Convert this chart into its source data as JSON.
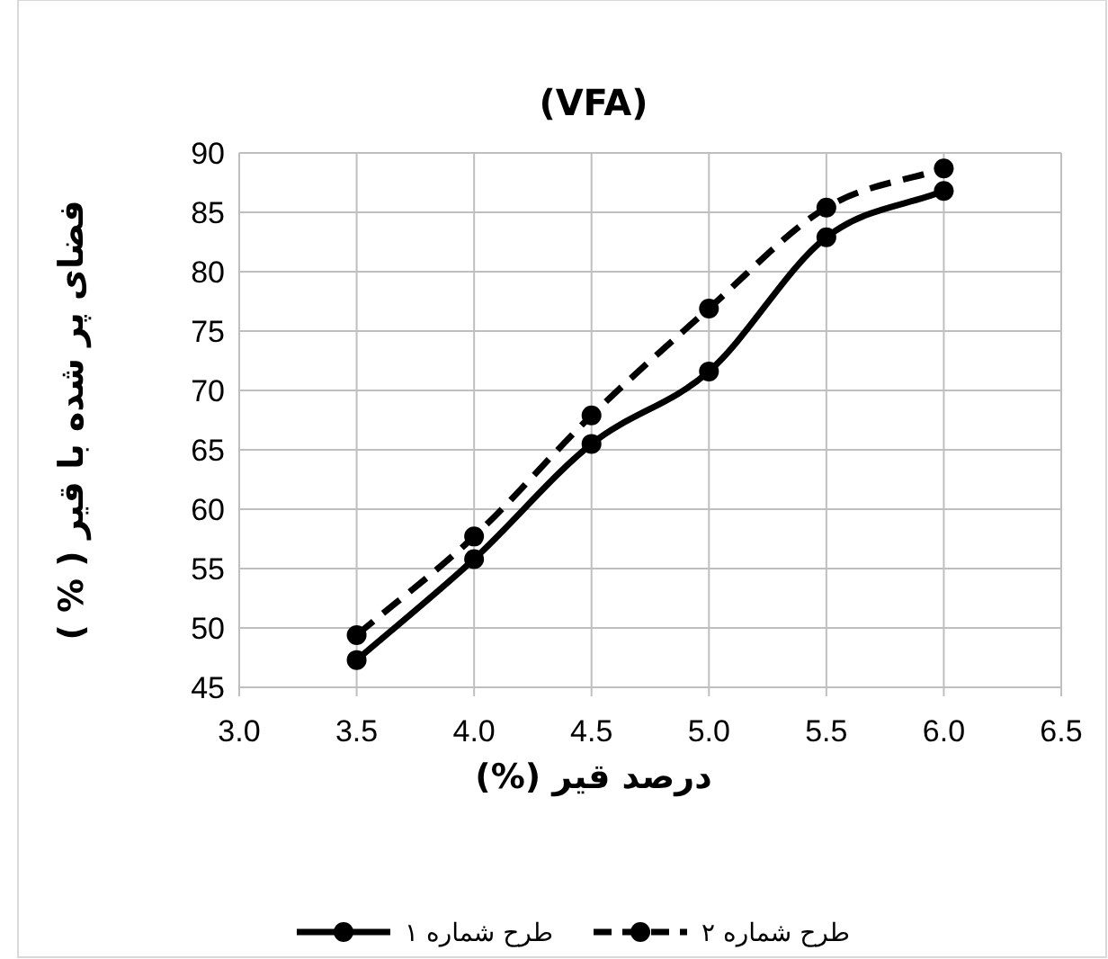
{
  "chart_data": {
    "type": "line",
    "title": "(VFA)",
    "xlabel": "درصد قیر (%)",
    "ylabel": "فضای پر شده با قیر ( % )",
    "x": [
      3.5,
      4.0,
      4.5,
      5.0,
      5.5,
      6.0
    ],
    "series": [
      {
        "name": "طرح شماره ۱",
        "color": "#000000",
        "line_style": "solid",
        "values": [
          47.3,
          55.8,
          65.5,
          71.6,
          82.9,
          86.8
        ]
      },
      {
        "name": "طرح شماره ۲",
        "color": "#000000",
        "line_style": "dashed",
        "values": [
          49.4,
          57.7,
          67.9,
          76.9,
          85.4,
          88.7
        ]
      }
    ],
    "xlim": [
      3.0,
      6.5
    ],
    "xticks": [
      {
        "value": 3.0,
        "label": "3.0"
      },
      {
        "value": 3.5,
        "label": "3.5"
      },
      {
        "value": 4.0,
        "label": "4.0"
      },
      {
        "value": 4.5,
        "label": "4.5"
      },
      {
        "value": 5.0,
        "label": "5.0"
      },
      {
        "value": 5.5,
        "label": "5.5"
      },
      {
        "value": 6.0,
        "label": "6.0"
      },
      {
        "value": 6.5,
        "label": "6.5"
      }
    ],
    "ylim": [
      45,
      90
    ],
    "yticks": [
      45,
      50,
      55,
      60,
      65,
      70,
      75,
      80,
      85,
      90
    ],
    "grid": true,
    "legend": "bottom",
    "marker": "circle"
  }
}
